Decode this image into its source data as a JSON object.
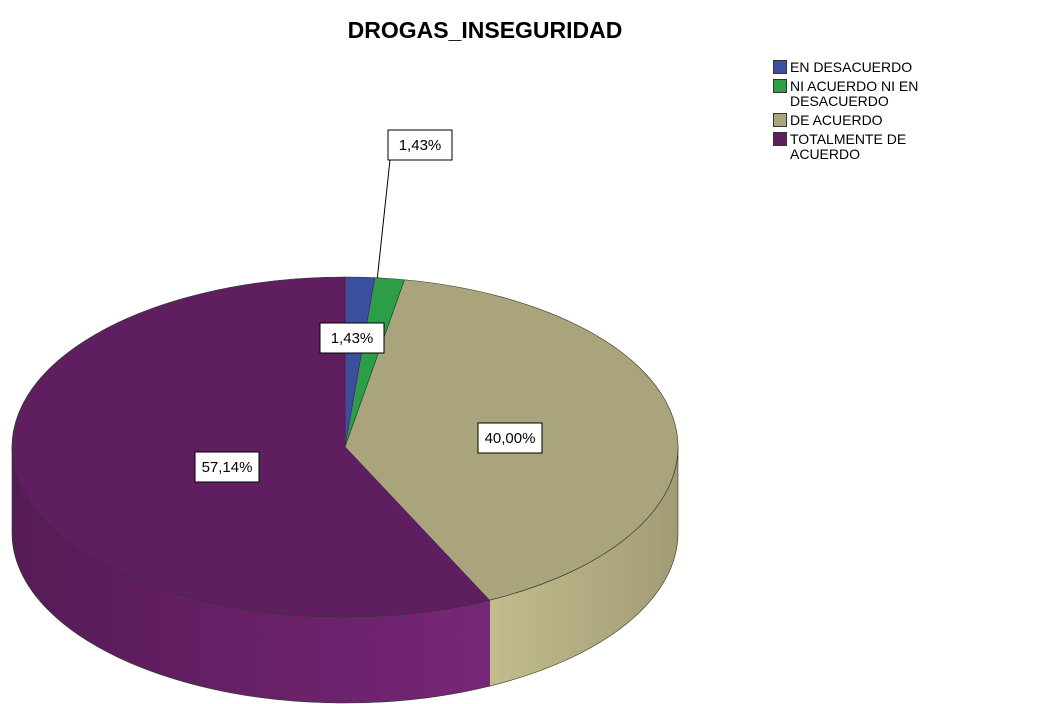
{
  "chart_data": {
    "type": "pie",
    "title": "DROGAS_INSEGURIDAD",
    "categories": [
      "EN DESACUERDO",
      "NI ACUERDO NI EN DESACUERDO",
      "DE ACUERDO",
      "TOTALMENTE DE ACUERDO"
    ],
    "values": [
      1.43,
      1.43,
      40.0,
      57.14
    ],
    "value_labels": [
      "1,43%",
      "1,43%",
      "40,00%",
      "57,14%"
    ],
    "colors": [
      "#3a4f9e",
      "#2e9e46",
      "#a9a47b",
      "#5f1e5f"
    ],
    "legend": "top-right"
  }
}
